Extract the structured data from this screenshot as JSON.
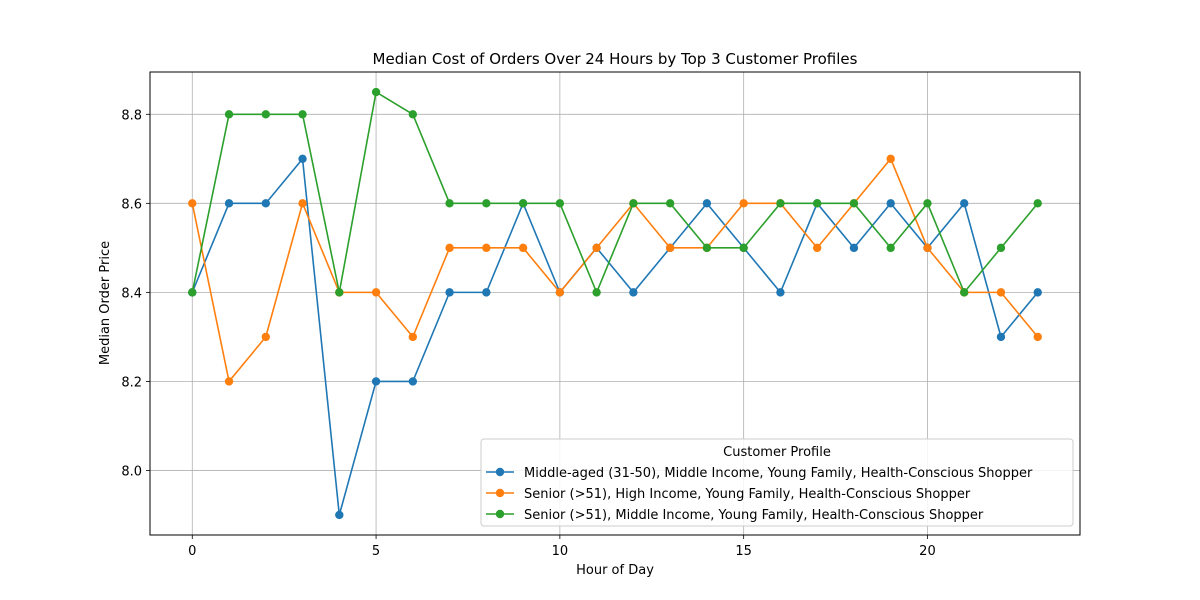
{
  "chart_data": {
    "type": "line",
    "title": "Median Cost of Orders Over 24 Hours by Top 3 Customer Profiles",
    "xlabel": "Hour of Day",
    "ylabel": "Median Order Price",
    "x": [
      0,
      1,
      2,
      3,
      4,
      5,
      6,
      7,
      8,
      9,
      10,
      11,
      12,
      13,
      14,
      15,
      16,
      17,
      18,
      19,
      20,
      21,
      22,
      23
    ],
    "xlim": [
      -1.15,
      24.15
    ],
    "ylim": [
      7.855,
      8.895
    ],
    "xticks": [
      0,
      5,
      10,
      15,
      20
    ],
    "yticks": [
      8.0,
      8.2,
      8.4,
      8.6,
      8.8
    ],
    "xtick_labels": [
      "0",
      "5",
      "10",
      "15",
      "20"
    ],
    "ytick_labels": [
      "8.0",
      "8.2",
      "8.4",
      "8.6",
      "8.8"
    ],
    "grid": true,
    "legend": {
      "title": "Customer Profile",
      "placement": "lower-right"
    },
    "series": [
      {
        "name": "Middle-aged (31-50), Middle Income, Young Family, Health-Conscious Shopper",
        "color": "#1f77b4",
        "values": [
          8.4,
          8.6,
          8.6,
          8.7,
          7.9,
          8.2,
          8.2,
          8.4,
          8.4,
          8.6,
          8.4,
          8.5,
          8.4,
          8.5,
          8.6,
          8.5,
          8.4,
          8.6,
          8.5,
          8.6,
          8.5,
          8.6,
          8.3,
          8.4
        ]
      },
      {
        "name": "Senior (>51), High Income, Young Family, Health-Conscious Shopper",
        "color": "#ff7f0e",
        "values": [
          8.6,
          8.2,
          8.3,
          8.6,
          8.4,
          8.4,
          8.3,
          8.5,
          8.5,
          8.5,
          8.4,
          8.5,
          8.6,
          8.5,
          8.5,
          8.6,
          8.6,
          8.5,
          8.6,
          8.7,
          8.5,
          8.4,
          8.4,
          8.3
        ]
      },
      {
        "name": "Senior (>51), Middle Income, Young Family, Health-Conscious Shopper",
        "color": "#2ca02c",
        "values": [
          8.4,
          8.8,
          8.8,
          8.8,
          8.4,
          8.85,
          8.8,
          8.6,
          8.6,
          8.6,
          8.6,
          8.4,
          8.6,
          8.6,
          8.5,
          8.5,
          8.6,
          8.6,
          8.6,
          8.5,
          8.6,
          8.4,
          8.5,
          8.6
        ]
      }
    ]
  }
}
